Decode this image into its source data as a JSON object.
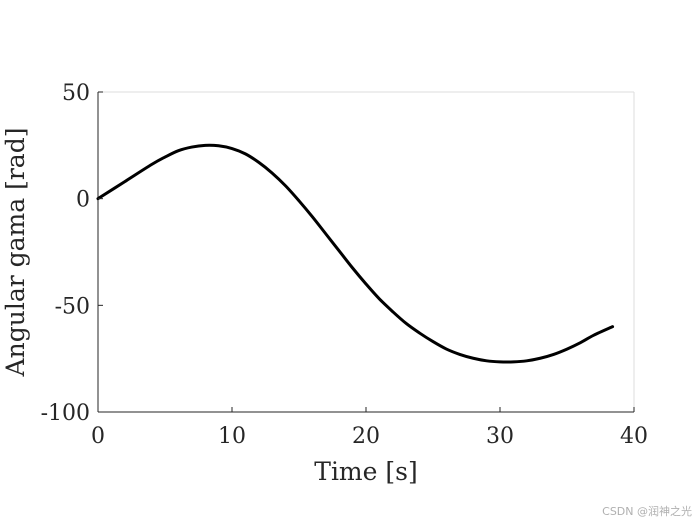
{
  "chart_data": {
    "type": "line",
    "xlabel": "Time [s]",
    "ylabel": "Angular gama [rad]",
    "xlim": [
      0,
      40
    ],
    "ylim": [
      -100,
      50
    ],
    "xticks": [
      0,
      10,
      20,
      30,
      40
    ],
    "xtick_labels": [
      "0",
      "10",
      "20",
      "30",
      "40"
    ],
    "yticks": [
      50,
      0,
      -50,
      -100
    ],
    "ytick_labels": [
      "50",
      "0",
      "-50",
      "-100"
    ],
    "grid": true,
    "line_color": "#000000",
    "series": [
      {
        "x": [
          0,
          2,
          4,
          5,
          6,
          7,
          8,
          9,
          10,
          11,
          12,
          13,
          14,
          15,
          16,
          17,
          18,
          19,
          20,
          21,
          22,
          23,
          24,
          25,
          26,
          27,
          28,
          29,
          30,
          31,
          32,
          33,
          34,
          35,
          36,
          37,
          38.4
        ],
        "y": [
          0,
          8,
          16,
          19.5,
          22.5,
          24.2,
          25,
          24.8,
          23.5,
          21,
          17,
          12,
          6,
          -1,
          -8.5,
          -16.5,
          -24.5,
          -32.5,
          -40,
          -47,
          -53,
          -58.5,
          -63,
          -67,
          -70.5,
          -73,
          -74.8,
          -76,
          -76.5,
          -76.5,
          -76,
          -74.8,
          -73,
          -70.5,
          -67.5,
          -64,
          -60
        ]
      }
    ]
  },
  "watermark": "CSDN @润神之光"
}
